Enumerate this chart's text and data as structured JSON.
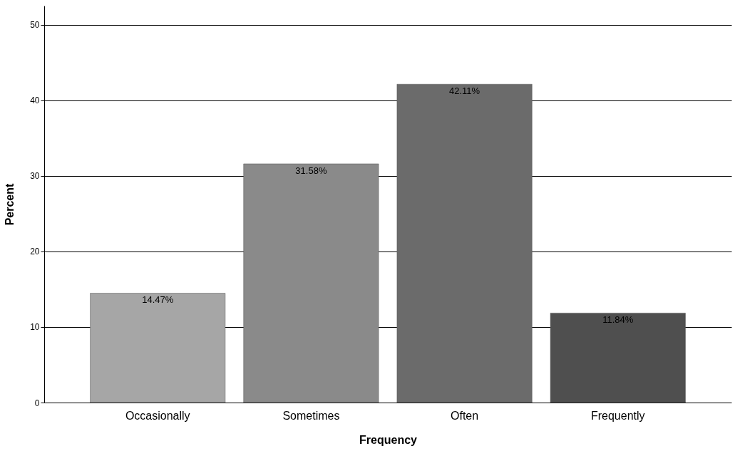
{
  "chart_data": {
    "type": "bar",
    "xlabel": "Frequency",
    "ylabel": "Percent",
    "categories": [
      "Occasionally",
      "Sometimes",
      "Often",
      "Frequently"
    ],
    "values": [
      14.47,
      31.58,
      42.11,
      11.84
    ],
    "colors": [
      "#a6a6a6",
      "#8a8a8a",
      "#6b6b6b",
      "#4f4f4f"
    ],
    "value_labels": [
      "14.47%",
      "31.58%",
      "42.11%",
      "11.84%"
    ],
    "ylim": [
      0,
      52.5
    ],
    "yticks": [
      0,
      10,
      20,
      30,
      40,
      50
    ],
    "grid": "y"
  }
}
